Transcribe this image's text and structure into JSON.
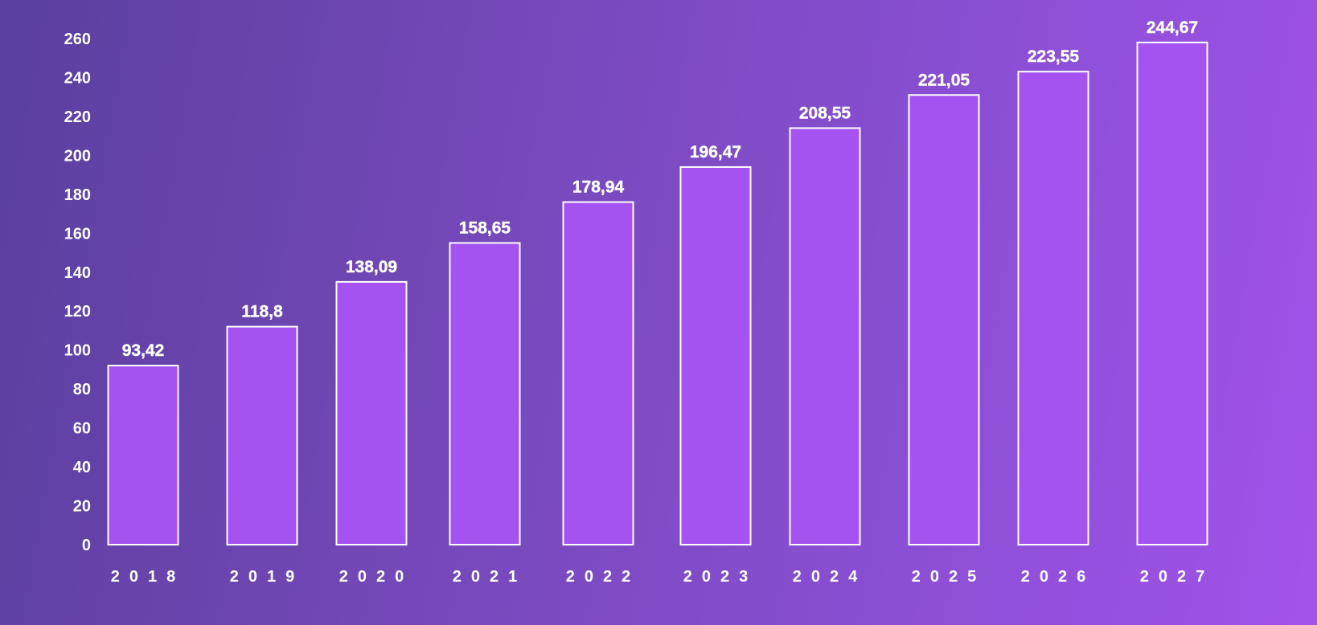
{
  "chart_data": {
    "type": "bar",
    "title": "",
    "xlabel": "",
    "ylabel": "",
    "categories": [
      "2018",
      "2019",
      "2020",
      "2021",
      "2022",
      "2023",
      "2024",
      "2025",
      "2026",
      "2027"
    ],
    "values": [
      93.42,
      118.8,
      138.09,
      158.65,
      178.94,
      196.47,
      208.55,
      221.05,
      223.55,
      244.67
    ],
    "bar_values": [
      92,
      112,
      135,
      155,
      176,
      194,
      214,
      231,
      243,
      258
    ],
    "data_labels": [
      "93,42",
      "118,8",
      "138,09",
      "158,65",
      "178,94",
      "196,47",
      "208,55",
      "221,05",
      "223,55",
      "244,67"
    ],
    "y_ticks": [
      0,
      20,
      40,
      60,
      80,
      100,
      120,
      140,
      160,
      180,
      200,
      220,
      240,
      260
    ],
    "ylim": [
      0,
      260
    ],
    "grid": false,
    "legend": "none",
    "colors": {
      "bar_fill": "#a452f0",
      "bar_stroke": "#ffffff",
      "text": "#ffffff"
    }
  }
}
